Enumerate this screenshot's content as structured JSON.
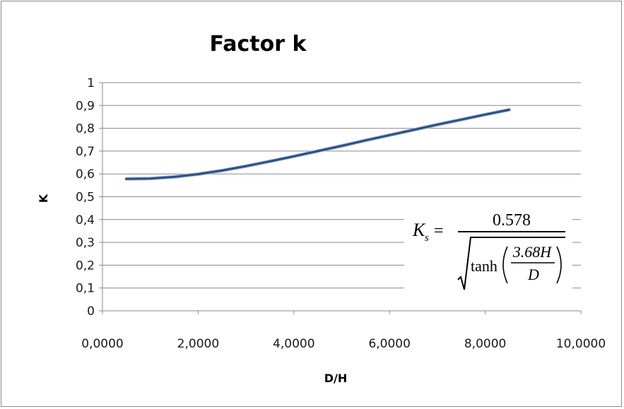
{
  "chart_data": {
    "type": "line",
    "title": "Factor k",
    "xlabel": "D/H",
    "ylabel": "K",
    "xlim": [
      0,
      10
    ],
    "ylim": [
      0,
      1
    ],
    "x_tick_labels": [
      "0,0000",
      "2,0000",
      "4,0000",
      "6,0000",
      "8,0000",
      "10,0000"
    ],
    "y_tick_labels": [
      "0",
      "0,1",
      "0,2",
      "0,3",
      "0,4",
      "0,5",
      "0,6",
      "0,7",
      "0,8",
      "0,9",
      "1"
    ],
    "grid": "horizontal",
    "legend": "none",
    "series": [
      {
        "color": "#2f4f7f",
        "x": [
          0.5,
          1.0,
          1.5,
          2.0,
          2.5,
          3.0,
          3.5,
          4.0,
          4.5,
          5.0,
          5.5,
          6.0,
          6.5,
          7.0,
          7.5,
          8.0,
          8.5
        ],
        "y": [
          0.578,
          0.58,
          0.587,
          0.599,
          0.615,
          0.634,
          0.655,
          0.677,
          0.7,
          0.723,
          0.747,
          0.77,
          0.793,
          0.816,
          0.838,
          0.86,
          0.881
        ]
      }
    ],
    "annotation": {
      "lhs": "K",
      "lhs_sub": "s",
      "equals": "=",
      "numerator": "0.578",
      "func": "tanh",
      "inner_numerator": "3.68H",
      "inner_denominator": "D"
    }
  }
}
